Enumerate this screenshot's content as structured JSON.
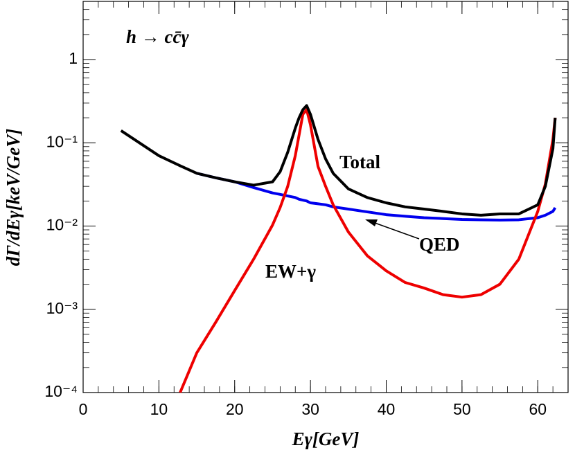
{
  "chart_data": {
    "type": "line",
    "title": "h → cc̄γ",
    "x_label": "Eγ[GeV]",
    "y_label": "dΓ/dEγ[keV/GeV]",
    "log_y": true,
    "xlim": [
      0,
      64
    ],
    "xticks": [
      0,
      10,
      20,
      30,
      40,
      50,
      60
    ],
    "ylim": [
      0.0001,
      5
    ],
    "yticks": [
      {
        "value": 0.0001,
        "label": "10⁻⁴"
      },
      {
        "value": 0.001,
        "label": "10⁻³"
      },
      {
        "value": 0.01,
        "label": "10⁻²"
      },
      {
        "value": 0.1,
        "label": "10⁻¹"
      },
      1
    ],
    "x": [
      5,
      10,
      12.8,
      15,
      17.5,
      20,
      22.5,
      25,
      26,
      27,
      28,
      28.5,
      29,
      29.5,
      30,
      31,
      32,
      33,
      35,
      37.5,
      40,
      42.5,
      45,
      47.5,
      50,
      52.5,
      55,
      57.5,
      60,
      61,
      62,
      62.3
    ],
    "series": [
      {
        "name": "Total",
        "color": "#000000",
        "values": [
          0.14,
          0.07,
          0.053,
          0.043,
          0.038,
          0.034,
          0.031,
          0.034,
          0.045,
          0.077,
          0.15,
          0.2,
          0.25,
          0.28,
          0.22,
          0.11,
          0.064,
          0.043,
          0.028,
          0.022,
          0.019,
          0.017,
          0.016,
          0.015,
          0.014,
          0.0135,
          0.014,
          0.014,
          0.018,
          0.03,
          0.085,
          0.2
        ]
      },
      {
        "name": "QED",
        "color": "#0000ee",
        "values": [
          null,
          null,
          null,
          0.043,
          0.038,
          0.034,
          0.029,
          0.025,
          0.024,
          0.023,
          0.022,
          0.021,
          0.0205,
          0.02,
          0.019,
          0.0185,
          0.018,
          0.017,
          0.016,
          0.0148,
          0.0137,
          0.0131,
          0.0126,
          0.0123,
          0.012,
          0.0119,
          0.0118,
          0.0119,
          0.0126,
          0.0135,
          0.015,
          0.0166
        ]
      },
      {
        "name": "EW+γ",
        "color": "#ee0000",
        "values": [
          null,
          null,
          0.0001,
          0.0003,
          0.0007,
          0.00168,
          0.004,
          0.0103,
          0.0167,
          0.03,
          0.07,
          0.124,
          0.22,
          0.25,
          0.165,
          0.052,
          0.03,
          0.018,
          0.0085,
          0.0044,
          0.0029,
          0.0021,
          0.0018,
          0.0015,
          0.0014,
          0.0015,
          0.002,
          0.004,
          0.015,
          0.032,
          0.11,
          0.2
        ]
      }
    ]
  }
}
